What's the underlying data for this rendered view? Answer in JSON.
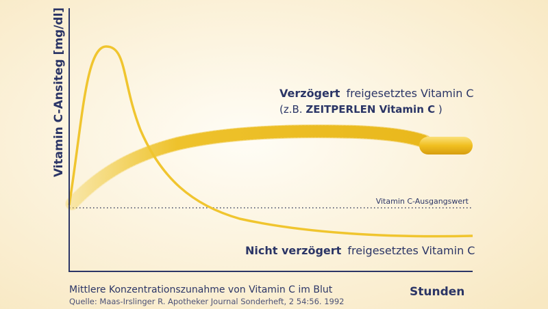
{
  "axes": {
    "y_label": "Vitamin C-Ansiteg [mg/dl]",
    "x_label": "Stunden"
  },
  "annotations": {
    "delayed": {
      "bold": "Verzögert",
      "text": "freigesetztes Vitamin C",
      "example_prefix": "(z.B.",
      "example_bold": "ZEITPERLEN Vitamin C",
      "example_suffix": ")"
    },
    "baseline": "Vitamin C-Ausgangswert",
    "immediate": {
      "bold": "Nicht verzögert",
      "text": "freigesetztes Vitamin C"
    }
  },
  "caption": "Mittlere Konzentrationszunahme von Vitamin C im Blut",
  "source": "Quelle: Maas-Irslinger R. Apotheker Journal Sonderheft, 2 54:56. 1992"
}
